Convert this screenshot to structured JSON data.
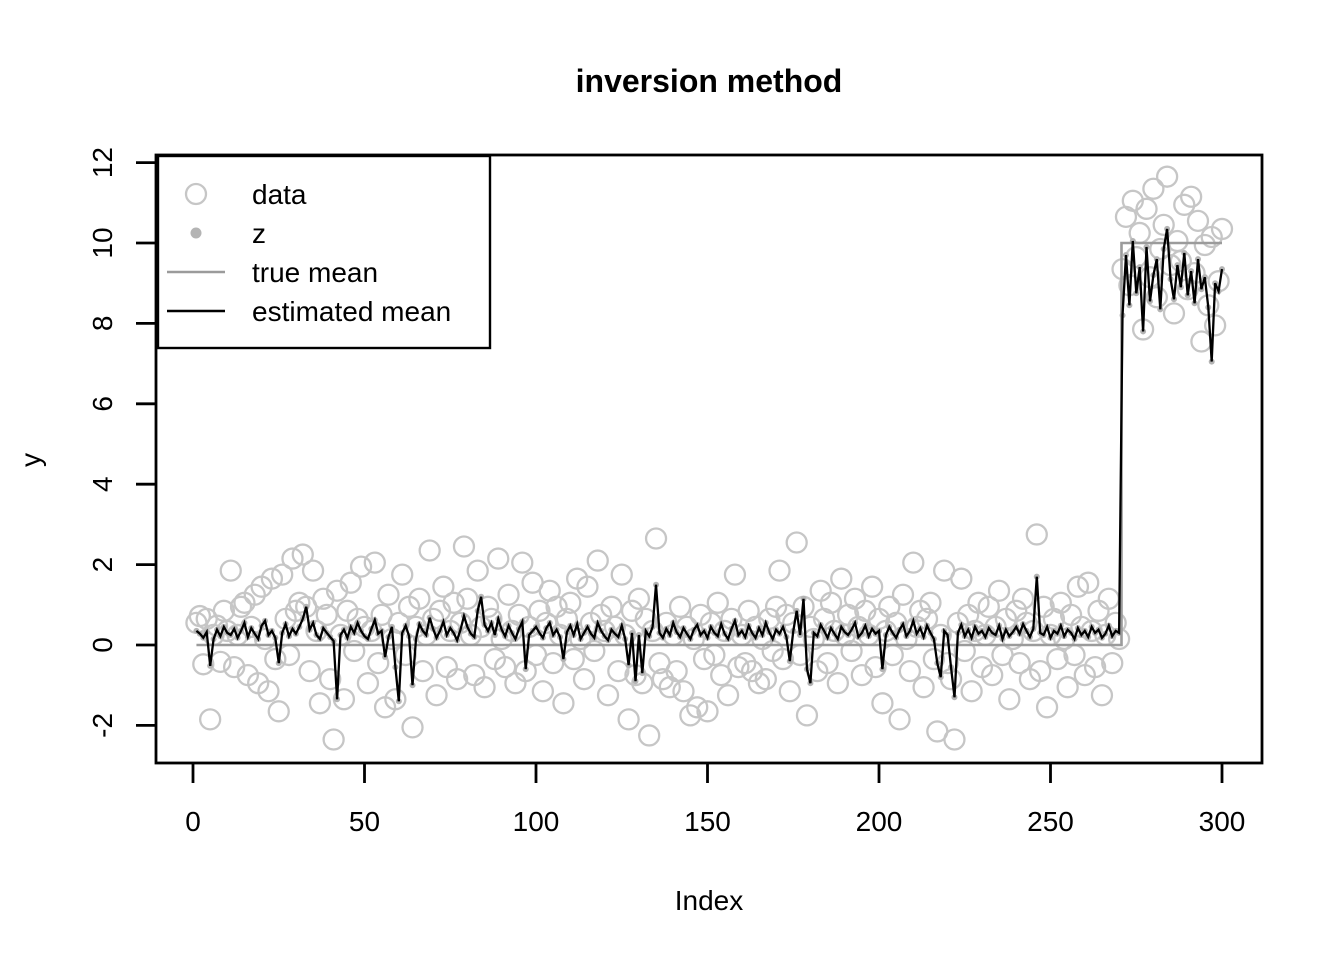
{
  "figure": {
    "background": "#ffffff"
  },
  "chart_data": {
    "type": "line",
    "title": "inversion method",
    "xlabel": "Index",
    "ylabel": "y",
    "xlim": [
      0,
      300
    ],
    "ylim": [
      -2,
      12
    ],
    "x_ticks": [
      0,
      50,
      100,
      150,
      200,
      250,
      300
    ],
    "y_ticks": [
      -2,
      0,
      2,
      4,
      6,
      8,
      10,
      12
    ],
    "grid": false,
    "x_start": 1,
    "legend": {
      "position": "top-left",
      "entries": [
        {
          "label": "data",
          "marker": "open-circle",
          "color": "#c6c6c6"
        },
        {
          "label": "z",
          "marker": "dot",
          "color": "#b4b4b4"
        },
        {
          "label": "true mean",
          "marker": "line",
          "color": "#9b9b9b"
        },
        {
          "label": "estimated mean",
          "marker": "line",
          "color": "#000000"
        }
      ]
    },
    "series": [
      {
        "name": "data",
        "type": "scatter",
        "marker": "open-circle",
        "color": "#c6c6c6",
        "y": [
          0.55,
          0.72,
          -0.48,
          0.65,
          -1.85,
          0.25,
          0.48,
          -0.42,
          0.85,
          0.35,
          1.85,
          -0.55,
          0.25,
          0.95,
          1.05,
          -0.75,
          0.45,
          1.25,
          -0.95,
          1.45,
          0.15,
          -1.15,
          1.65,
          -0.35,
          -1.65,
          1.75,
          0.65,
          -0.25,
          2.15,
          0.85,
          1.05,
          2.25,
          0.95,
          -0.65,
          1.85,
          0.35,
          -1.45,
          1.15,
          0.75,
          -0.85,
          -2.35,
          1.35,
          0.25,
          -1.35,
          0.85,
          1.55,
          -0.15,
          0.65,
          1.95,
          0.45,
          -0.95,
          0.35,
          2.05,
          -0.45,
          0.75,
          -1.55,
          1.25,
          0.15,
          -1.35,
          0.55,
          1.75,
          -0.25,
          0.95,
          -2.05,
          0.45,
          1.15,
          -0.65,
          0.25,
          2.35,
          0.65,
          -1.25,
          0.85,
          1.45,
          -0.55,
          0.35,
          1.05,
          -0.85,
          0.55,
          2.45,
          1.15,
          0.25,
          -0.75,
          1.85,
          0.45,
          -1.05,
          0.95,
          0.65,
          -0.35,
          2.15,
          0.15,
          -0.55,
          1.25,
          0.35,
          -0.95,
          0.75,
          2.05,
          -0.65,
          0.45,
          1.55,
          -0.25,
          0.85,
          -1.15,
          0.55,
          1.35,
          -0.45,
          0.95,
          0.25,
          -1.45,
          0.65,
          1.05,
          -0.35,
          1.65,
          0.15,
          -0.85,
          1.45,
          0.55,
          -0.15,
          2.1,
          0.75,
          0.35,
          -1.25,
          0.95,
          0.45,
          -0.65,
          1.75,
          0.25,
          -1.85,
          0.85,
          -0.75,
          1.15,
          -0.95,
          0.65,
          -2.25,
          0.35,
          2.65,
          -0.45,
          -0.85,
          0.55,
          -1.05,
          0.25,
          -0.65,
          0.95,
          -1.15,
          0.45,
          -1.75,
          0.15,
          -1.55,
          0.75,
          -0.35,
          -1.65,
          0.55,
          -0.25,
          1.05,
          -0.75,
          0.35,
          -1.25,
          0.65,
          1.75,
          -0.55,
          0.25,
          -0.45,
          0.85,
          -0.65,
          0.45,
          -0.95,
          0.15,
          -0.85,
          0.65,
          -0.15,
          0.95,
          1.85,
          -0.35,
          0.75,
          -1.15,
          0.55,
          2.55,
          -0.25,
          0.95,
          -1.75,
          0.45,
          0.15,
          -0.65,
          1.35,
          0.65,
          -0.45,
          1.05,
          0.35,
          -0.95,
          1.65,
          0.25,
          0.75,
          -0.15,
          1.15,
          0.45,
          -0.75,
          0.85,
          0.25,
          1.45,
          -0.55,
          0.65,
          -1.45,
          0.35,
          0.95,
          -0.25,
          0.55,
          -1.85,
          1.25,
          0.15,
          -0.65,
          2.05,
          0.45,
          0.85,
          -1.05,
          0.65,
          1.05,
          -0.35,
          -2.15,
          0.25,
          1.85,
          -0.45,
          -0.85,
          -2.35,
          0.55,
          1.65,
          -0.15,
          0.75,
          -1.15,
          0.35,
          1.05,
          -0.55,
          0.25,
          0.95,
          -0.75,
          0.45,
          1.35,
          -0.25,
          0.65,
          -1.35,
          0.15,
          0.85,
          -0.45,
          1.15,
          0.55,
          -0.85,
          0.35,
          2.75,
          -0.65,
          0.95,
          -1.55,
          0.25,
          0.65,
          -0.35,
          1.05,
          0.15,
          -1.05,
          0.75,
          -0.25,
          1.45,
          0.45,
          -0.75,
          1.55,
          0.35,
          -0.55,
          0.85,
          -1.25,
          0.25,
          1.15,
          -0.45,
          0.55,
          0.15,
          9.35,
          10.65,
          8.95,
          11.05,
          9.65,
          10.25,
          7.85,
          10.85,
          9.15,
          11.35,
          8.65,
          9.85,
          10.45,
          11.65,
          9.45,
          8.25,
          10.05,
          9.55,
          10.95,
          8.85,
          11.15,
          9.25,
          10.55,
          7.55,
          9.95,
          8.45,
          10.15,
          7.95,
          9.05,
          10.35
        ]
      },
      {
        "name": "z",
        "type": "scatter",
        "marker": "dot",
        "color": "#b4b4b4",
        "y_same_as": "estimated mean"
      },
      {
        "name": "true mean",
        "type": "step",
        "color": "#9b9b9b",
        "before": 0,
        "after": 10,
        "change_index": 270.7
      },
      {
        "name": "estimated mean",
        "type": "line",
        "color": "#000000",
        "y": [
          0.35,
          0.28,
          0.18,
          0.32,
          -0.52,
          0.15,
          0.38,
          0.22,
          0.45,
          0.3,
          0.25,
          0.4,
          0.18,
          0.35,
          0.55,
          0.2,
          0.42,
          0.28,
          0.15,
          0.48,
          0.6,
          0.25,
          0.35,
          0.18,
          -0.45,
          0.3,
          0.52,
          0.22,
          0.4,
          0.28,
          0.45,
          0.65,
          0.95,
          0.38,
          0.55,
          0.25,
          0.15,
          0.42,
          0.3,
          0.2,
          0.1,
          -1.35,
          0.25,
          0.38,
          0.18,
          0.45,
          0.3,
          0.55,
          0.35,
          0.22,
          0.15,
          0.4,
          0.62,
          0.28,
          0.35,
          -0.3,
          0.2,
          0.45,
          -0.55,
          -1.4,
          0.3,
          0.48,
          0.22,
          -1.0,
          0.15,
          0.52,
          0.35,
          0.25,
          0.68,
          0.4,
          0.18,
          0.35,
          0.58,
          0.25,
          0.42,
          0.3,
          0.12,
          0.38,
          0.72,
          0.45,
          0.28,
          0.2,
          0.85,
          1.2,
          0.5,
          0.35,
          0.55,
          0.25,
          0.65,
          0.38,
          0.22,
          0.48,
          0.3,
          0.15,
          0.4,
          0.58,
          -0.6,
          0.25,
          0.35,
          0.45,
          0.3,
          0.18,
          0.42,
          0.55,
          0.25,
          0.38,
          0.2,
          -0.35,
          0.32,
          0.48,
          0.25,
          0.52,
          0.15,
          0.3,
          0.45,
          0.28,
          0.18,
          0.55,
          0.35,
          0.22,
          0.12,
          0.38,
          0.28,
          0.2,
          0.48,
          0.15,
          -0.5,
          0.3,
          -0.9,
          0.25,
          -0.7,
          0.35,
          0.22,
          0.45,
          1.5,
          0.3,
          0.18,
          0.4,
          0.25,
          0.55,
          0.32,
          0.2,
          0.42,
          0.28,
          0.15,
          0.38,
          0.5,
          0.25,
          0.35,
          0.18,
          0.45,
          0.3,
          0.22,
          0.52,
          0.28,
          0.15,
          0.4,
          0.6,
          0.25,
          0.35,
          0.2,
          0.48,
          0.3,
          0.18,
          0.42,
          0.25,
          0.55,
          0.32,
          0.15,
          0.38,
          0.28,
          0.45,
          0.2,
          -0.4,
          0.35,
          0.85,
          0.25,
          1.15,
          -0.6,
          -0.95,
          0.3,
          0.22,
          0.5,
          0.35,
          0.18,
          0.42,
          0.28,
          0.15,
          0.45,
          0.32,
          0.25,
          0.38,
          0.55,
          0.2,
          0.3,
          0.48,
          0.22,
          0.4,
          0.28,
          0.35,
          -0.6,
          0.25,
          0.45,
          0.3,
          0.18,
          0.38,
          0.52,
          0.22,
          0.35,
          0.6,
          0.28,
          0.42,
          0.2,
          0.48,
          0.3,
          0.15,
          -0.45,
          -0.8,
          0.35,
          0.25,
          -0.55,
          -1.3,
          0.3,
          0.5,
          0.22,
          0.38,
          0.18,
          0.45,
          0.28,
          0.35,
          0.2,
          0.42,
          0.3,
          0.25,
          0.48,
          0.15,
          0.38,
          0.22,
          0.32,
          0.45,
          0.28,
          0.52,
          0.35,
          0.2,
          0.4,
          1.7,
          0.3,
          0.25,
          0.45,
          0.18,
          0.35,
          0.28,
          0.48,
          0.22,
          0.38,
          0.3,
          0.15,
          0.42,
          0.25,
          0.35,
          0.2,
          0.45,
          0.3,
          0.38,
          0.18,
          0.28,
          0.48,
          0.22,
          0.35,
          0.3,
          8.2,
          9.7,
          8.45,
          10.05,
          8.75,
          9.4,
          7.8,
          9.9,
          8.55,
          9.2,
          9.6,
          8.35,
          9.85,
          10.35,
          9.1,
          8.6,
          9.45,
          8.9,
          9.75,
          8.7,
          9.3,
          8.5,
          9.6,
          8.85,
          9.15,
          8.4,
          7.05,
          9.0,
          8.8,
          9.35
        ]
      }
    ]
  }
}
